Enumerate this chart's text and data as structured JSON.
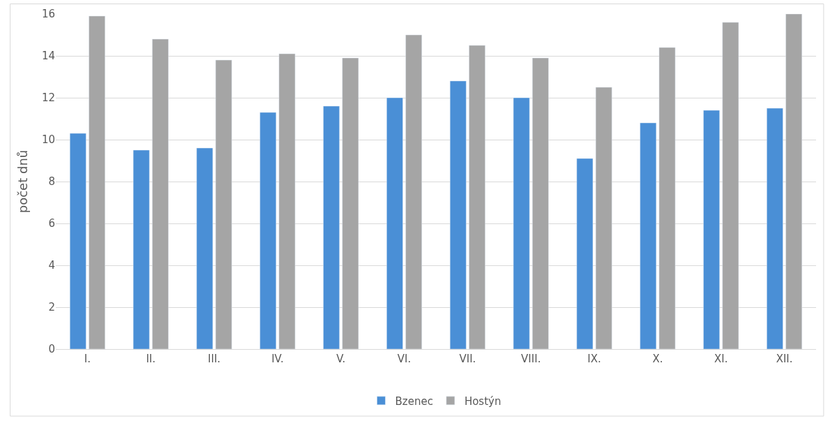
{
  "chart_data": {
    "type": "bar",
    "ylabel": "počet dnů",
    "categories": [
      "I.",
      "II.",
      "III.",
      "IV.",
      "V.",
      "VI.",
      "VII.",
      "VIII.",
      "IX.",
      "X.",
      "XI.",
      "XII."
    ],
    "series": [
      {
        "name": "Bzenec",
        "color": "#4a8fd6",
        "values": [
          10.3,
          9.5,
          9.6,
          11.3,
          11.6,
          12.0,
          12.8,
          12.0,
          9.1,
          10.8,
          11.4,
          11.5
        ]
      },
      {
        "name": "Hostýn",
        "color": "#a5a5a5",
        "values": [
          15.9,
          14.8,
          13.8,
          14.1,
          13.9,
          15.0,
          14.5,
          13.9,
          12.5,
          14.4,
          15.6,
          16.0
        ]
      }
    ],
    "ylim": [
      0,
      16
    ],
    "yticks": [
      0,
      2,
      4,
      6,
      8,
      10,
      12,
      14,
      16
    ],
    "grid": "y",
    "legend": "bottom"
  }
}
